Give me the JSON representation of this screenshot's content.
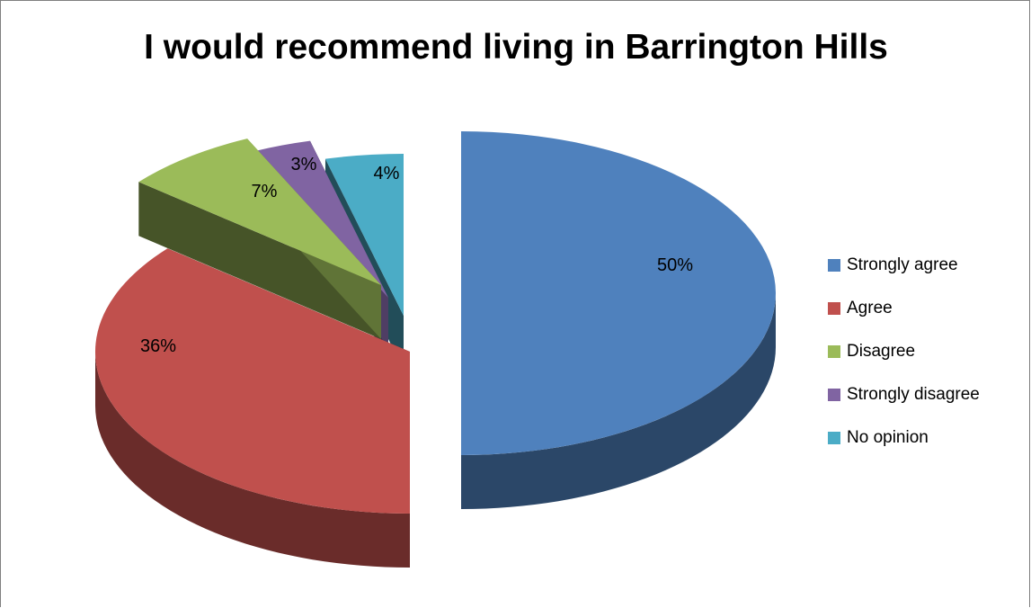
{
  "chart_data": {
    "type": "pie",
    "title": "I would recommend living in Barrington Hills",
    "categories": [
      "Strongly agree",
      "Agree",
      "Disagree",
      "Strongly disagree",
      "No opinion"
    ],
    "values": [
      50,
      36,
      7,
      3,
      4
    ],
    "data_labels": [
      "50%",
      "36%",
      "7%",
      "3%",
      "4%"
    ],
    "colors": [
      "#4F81BD",
      "#C0504D",
      "#9BBB59",
      "#8064A2",
      "#4BACC6"
    ],
    "style": "3d-exploded",
    "legend_position": "right"
  }
}
